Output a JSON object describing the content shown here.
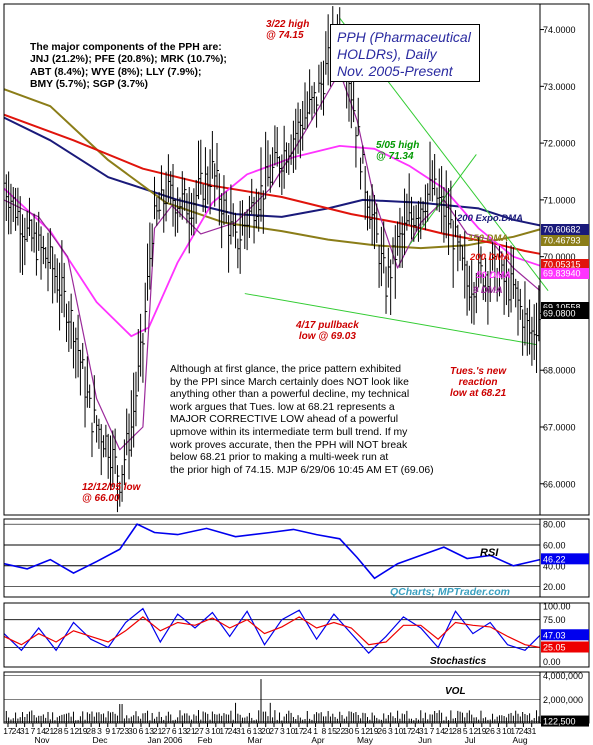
{
  "header": {
    "title_lines": [
      "PPH (Pharmaceutical",
      "HOLDRs), Daily",
      "Nov. 2005-Present"
    ],
    "components_lines": [
      "The major components of the PPH are:",
      "JNJ (21.2%); PFE (20.8%); MRK (10.7%);",
      "ABT (8.4%); WYE (8%); LLY (7.9%);",
      "BMY (5.7%); SGP (3.7%)"
    ]
  },
  "annotations": {
    "high_322": [
      "3/22 high",
      "@ 74.15"
    ],
    "high_505": [
      "5/05 high",
      "@ 71.34"
    ],
    "pullback_417": [
      "4/17 pullback",
      "low @ 69.03"
    ],
    "low_1212": [
      "12/12/05 low",
      "@ 66.00"
    ],
    "tues_low": [
      "Tues.'s new",
      "reaction",
      "low at 68.21"
    ],
    "commentary": [
      "Although at first glance, the price pattern exhibited",
      "by the PPI since March certainly does NOT look like",
      "anything other than a powerful decline, my technical",
      "work argues that Tues. low at 68.21 represents a",
      "MAJOR CORRECTIVE LOW ahead of a powerful",
      "upmove within its intermediate term bull trend. If my",
      "work proves accurate, then the PPH will NOT break",
      "below 68.21 prior to making a multi-week run at",
      "the prior high of 74.15.  MJP  6/29/06  10:45 AM ET  (69.06)"
    ],
    "watermark": "QCharts; MPTrader.com"
  },
  "colors": {
    "price": "#000000",
    "expo200": "#1a1a7a",
    "dma150": "#8b7d18",
    "dma200": "#e0140c",
    "dma50": "#ff33ff",
    "dma9": "#9b2a9b",
    "trend": "#33cc33",
    "rsi": "#0000ee",
    "stoch_k": "#0000ee",
    "stoch_d": "#ee0000",
    "grid": "#000000",
    "tag_bg_black": "#000000",
    "tag_bg_magenta": "#ff33ff",
    "tag_bg_red": "#e0140c",
    "tag_bg_navy": "#1a1a7a",
    "tag_bg_olive": "#8b7d18"
  },
  "chart_data": [
    {
      "type": "line",
      "panel": "price",
      "y_ticks": [
        66.0,
        67.0,
        68.0,
        69.0,
        70.0,
        71.0,
        72.0,
        73.0,
        74.0
      ],
      "y_tick_labels": [
        "66.0000",
        "67.0000",
        "68.0000",
        "69.0000",
        "70.0000",
        "71.0000",
        "72.0000",
        "73.0000",
        "74.0000"
      ],
      "ylim": [
        65.45,
        74.45
      ],
      "x_tick_labels": [
        "17",
        "24",
        "31",
        "7",
        "14",
        "21",
        "28",
        "5",
        "12",
        "19",
        "28",
        "3",
        "9",
        "17",
        "23",
        "30",
        "6",
        "13",
        "21",
        "27",
        "6",
        "13",
        "21",
        "27",
        "3",
        "10",
        "17",
        "24",
        "31",
        "6",
        "13",
        "20",
        "27",
        "3",
        "10",
        "17",
        "24",
        "1",
        "8",
        "15",
        "22",
        "30",
        "5",
        "12",
        "19",
        "26",
        "3",
        "10",
        "17",
        "24",
        "31",
        "7",
        "14",
        "21",
        "28",
        "5",
        "12",
        "19",
        "26",
        "3",
        "10",
        "17",
        "24",
        "31"
      ],
      "month_labels": [
        "Nov",
        "Dec",
        "Jan 2006",
        "Feb",
        "Mar",
        "Apr",
        "May",
        "Jun",
        "Jul",
        "Aug"
      ],
      "series": [
        {
          "name": "200 Expo.DMA",
          "points": [
            [
              0,
              72.45
            ],
            [
              40,
              72.05
            ],
            [
              90,
              71.4
            ],
            [
              150,
              71.0
            ],
            [
              200,
              70.75
            ],
            [
              240,
              70.7
            ],
            [
              280,
              70.85
            ],
            [
              310,
              71.0
            ],
            [
              360,
              70.95
            ],
            [
              410,
              70.85
            ],
            [
              440,
              70.65
            ],
            [
              463,
              70.55
            ]
          ]
        },
        {
          "name": "150 DMA",
          "points": [
            [
              0,
              72.95
            ],
            [
              40,
              72.65
            ],
            [
              90,
              71.7
            ],
            [
              140,
              70.95
            ],
            [
              190,
              70.6
            ],
            [
              240,
              70.45
            ],
            [
              280,
              70.3
            ],
            [
              320,
              70.2
            ],
            [
              360,
              70.15
            ],
            [
              400,
              70.2
            ],
            [
              440,
              70.35
            ],
            [
              463,
              70.48
            ]
          ]
        },
        {
          "name": "200 DMA",
          "points": [
            [
              0,
              72.5
            ],
            [
              60,
              72.05
            ],
            [
              120,
              71.55
            ],
            [
              180,
              71.25
            ],
            [
              240,
              71.05
            ],
            [
              300,
              70.75
            ],
            [
              340,
              70.6
            ],
            [
              380,
              70.4
            ],
            [
              420,
              70.25
            ],
            [
              450,
              70.1
            ],
            [
              463,
              70.05
            ]
          ]
        },
        {
          "name": "50 DMA",
          "points": [
            [
              0,
              71.2
            ],
            [
              40,
              70.45
            ],
            [
              80,
              69.2
            ],
            [
              110,
              68.6
            ],
            [
              125,
              68.75
            ],
            [
              150,
              69.9
            ],
            [
              180,
              70.95
            ],
            [
              210,
              71.45
            ],
            [
              250,
              71.75
            ],
            [
              290,
              71.95
            ],
            [
              320,
              71.9
            ],
            [
              350,
              71.6
            ],
            [
              380,
              71.2
            ],
            [
              410,
              70.5
            ],
            [
              440,
              70.0
            ],
            [
              463,
              69.84
            ]
          ]
        },
        {
          "name": "9 DMA",
          "points": [
            [
              0,
              71.0
            ],
            [
              30,
              70.7
            ],
            [
              55,
              70.0
            ],
            [
              80,
              67.5
            ],
            [
              100,
              66.6
            ],
            [
              120,
              67.0
            ],
            [
              130,
              70.5
            ],
            [
              145,
              70.9
            ],
            [
              170,
              70.4
            ],
            [
              200,
              70.6
            ],
            [
              230,
              71.2
            ],
            [
              260,
              72.2
            ],
            [
              290,
              73.25
            ],
            [
              305,
              72.4
            ],
            [
              320,
              71.0
            ],
            [
              340,
              69.8
            ],
            [
              360,
              70.6
            ],
            [
              380,
              71.0
            ],
            [
              400,
              70.4
            ],
            [
              420,
              70.3
            ],
            [
              440,
              69.8
            ],
            [
              463,
              69.4
            ]
          ]
        }
      ],
      "dma_labels": [
        "200 Expo.DMA",
        "150 DMA",
        "200 DMA",
        "50 DMA",
        "9 DMA"
      ],
      "right_tags": [
        {
          "label": "70.60682",
          "value": 70.61,
          "bg": "#1a1a7a"
        },
        {
          "label": "70.46793",
          "value": 70.47,
          "bg": "#8b7d18"
        },
        {
          "label": "70.05315",
          "value": 70.05,
          "bg": "#e0140c"
        },
        {
          "label": "69.83940",
          "value": 69.84,
          "bg": "#ff33ff"
        },
        {
          "label": "69.10558",
          "value": 69.11,
          "bg": "#000000"
        },
        {
          "label": "69.0800",
          "value": 69.08,
          "bg": "#000000"
        }
      ],
      "trendlines": [
        {
          "from": [
            290,
            74.2
          ],
          "to": [
            470,
            69.4
          ]
        },
        {
          "from": [
            208,
            69.35
          ],
          "to": [
            460,
            68.45
          ]
        },
        {
          "from": [
            350,
            70.2
          ],
          "to": [
            408,
            71.8
          ]
        }
      ]
    },
    {
      "type": "line",
      "panel": "rsi",
      "y_ticks": [
        20.0,
        40.0,
        60.0,
        80.0
      ],
      "y_tick_labels": [
        "20.00",
        "40.00",
        "60.00",
        "80.00"
      ],
      "ylim": [
        10,
        85
      ],
      "series_label": "RSI",
      "last_value": "46.22",
      "series": [
        {
          "name": "RSI",
          "points": [
            [
              0,
              42
            ],
            [
              20,
              37
            ],
            [
              40,
              46
            ],
            [
              60,
              33
            ],
            [
              80,
              44
            ],
            [
              100,
              56
            ],
            [
              115,
              80
            ],
            [
              130,
              72
            ],
            [
              150,
              70
            ],
            [
              175,
              76
            ],
            [
              200,
              68
            ],
            [
              230,
              72
            ],
            [
              250,
              75
            ],
            [
              270,
              70
            ],
            [
              290,
              66
            ],
            [
              305,
              48
            ],
            [
              320,
              28
            ],
            [
              340,
              42
            ],
            [
              360,
              50
            ],
            [
              380,
              58
            ],
            [
              400,
              47
            ],
            [
              420,
              50
            ],
            [
              440,
              40
            ],
            [
              463,
              46
            ]
          ]
        }
      ]
    },
    {
      "type": "line",
      "panel": "stochastics",
      "y_ticks": [
        0.0,
        25.0,
        50.0,
        75.0,
        100.0
      ],
      "y_tick_labels": [
        "0.00",
        "25.00",
        "50.00",
        "75.00",
        "100.00"
      ],
      "ylim": [
        -10,
        105
      ],
      "series_label": "Stochastics",
      "last_values": [
        "47.03",
        "25.05"
      ],
      "series": [
        {
          "name": "%K",
          "points": [
            [
              0,
              50
            ],
            [
              15,
              20
            ],
            [
              30,
              60
            ],
            [
              45,
              20
            ],
            [
              60,
              70
            ],
            [
              75,
              40
            ],
            [
              90,
              25
            ],
            [
              105,
              70
            ],
            [
              120,
              95
            ],
            [
              135,
              35
            ],
            [
              150,
              85
            ],
            [
              165,
              60
            ],
            [
              180,
              88
            ],
            [
              195,
              45
            ],
            [
              210,
              90
            ],
            [
              225,
              30
            ],
            [
              240,
              75
            ],
            [
              255,
              92
            ],
            [
              270,
              40
            ],
            [
              285,
              85
            ],
            [
              300,
              50
            ],
            [
              315,
              15
            ],
            [
              330,
              45
            ],
            [
              345,
              80
            ],
            [
              360,
              60
            ],
            [
              375,
              25
            ],
            [
              390,
              90
            ],
            [
              405,
              50
            ],
            [
              420,
              70
            ],
            [
              435,
              30
            ],
            [
              450,
              20
            ],
            [
              463,
              47
            ]
          ]
        },
        {
          "name": "%D",
          "points": [
            [
              0,
              45
            ],
            [
              15,
              30
            ],
            [
              30,
              50
            ],
            [
              45,
              35
            ],
            [
              60,
              55
            ],
            [
              75,
              45
            ],
            [
              90,
              35
            ],
            [
              105,
              55
            ],
            [
              120,
              80
            ],
            [
              135,
              55
            ],
            [
              150,
              70
            ],
            [
              165,
              65
            ],
            [
              180,
              78
            ],
            [
              195,
              60
            ],
            [
              210,
              75
            ],
            [
              225,
              50
            ],
            [
              240,
              62
            ],
            [
              255,
              80
            ],
            [
              270,
              60
            ],
            [
              285,
              70
            ],
            [
              300,
              60
            ],
            [
              315,
              30
            ],
            [
              330,
              35
            ],
            [
              345,
              65
            ],
            [
              360,
              65
            ],
            [
              375,
              40
            ],
            [
              390,
              70
            ],
            [
              405,
              65
            ],
            [
              420,
              62
            ],
            [
              435,
              45
            ],
            [
              450,
              30
            ],
            [
              463,
              25
            ]
          ]
        }
      ]
    },
    {
      "type": "bar",
      "panel": "volume",
      "y_ticks": [
        122500,
        2000000,
        4000000
      ],
      "y_tick_labels": [
        "122,500",
        "2,000,000",
        "4,000,000"
      ],
      "ylim": [
        0,
        4300000
      ],
      "series_label": "VOL",
      "last_value": "122,500"
    }
  ]
}
